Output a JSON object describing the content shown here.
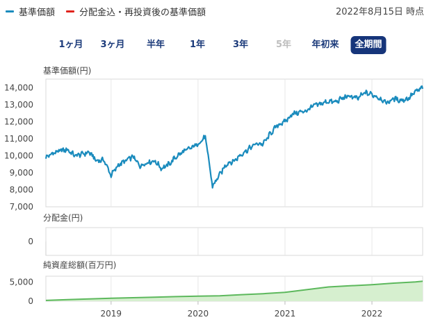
{
  "legend": {
    "items": [
      {
        "label": "基準価額",
        "color": "#1a8bbd"
      },
      {
        "label": "分配金込・再投資後の基準価額",
        "color": "#e0231c"
      }
    ]
  },
  "as_of": "2022年8月15日 時点",
  "periods": [
    {
      "label": "1ヶ月",
      "state": "normal"
    },
    {
      "label": "3ヶ月",
      "state": "normal"
    },
    {
      "label": "半年",
      "state": "normal"
    },
    {
      "label": "1年",
      "state": "normal"
    },
    {
      "label": "3年",
      "state": "normal"
    },
    {
      "label": "5年",
      "state": "disabled"
    },
    {
      "label": "年初来",
      "state": "normal"
    },
    {
      "label": "全期間",
      "state": "active"
    }
  ],
  "chart_data": [
    {
      "type": "line",
      "panel": "nav",
      "title": "基準価額(円)",
      "yticks": [
        "14,000",
        "13,000",
        "12,000",
        "11,000",
        "10,000",
        "9,000",
        "8,000",
        "7,000"
      ],
      "ylim": [
        7000,
        14500
      ],
      "x_range": [
        "2018-04",
        "2022-08"
      ],
      "color": "#1a8bbd",
      "x": [
        "2018-04",
        "2018-05",
        "2018-06",
        "2018-07",
        "2018-08",
        "2018-09",
        "2018-10",
        "2018-11",
        "2018-12",
        "2019-01",
        "2019-02",
        "2019-03",
        "2019-04",
        "2019-05",
        "2019-06",
        "2019-07",
        "2019-08",
        "2019-09",
        "2019-10",
        "2019-11",
        "2019-12",
        "2020-01",
        "2020-02",
        "2020-03",
        "2020-04",
        "2020-05",
        "2020-06",
        "2020-07",
        "2020-08",
        "2020-09",
        "2020-10",
        "2020-11",
        "2020-12",
        "2021-01",
        "2021-02",
        "2021-03",
        "2021-04",
        "2021-05",
        "2021-06",
        "2021-07",
        "2021-08",
        "2021-09",
        "2021-10",
        "2021-11",
        "2021-12",
        "2022-01",
        "2022-02",
        "2022-03",
        "2022-04",
        "2022-05",
        "2022-06",
        "2022-07",
        "2022-08"
      ],
      "y": [
        9900,
        10150,
        10300,
        10350,
        10000,
        10100,
        10200,
        9700,
        9750,
        8850,
        9450,
        9700,
        9950,
        9400,
        9600,
        9700,
        9250,
        9500,
        9950,
        10250,
        10450,
        10700,
        11100,
        8200,
        8900,
        9550,
        9700,
        10100,
        10400,
        10700,
        10700,
        11300,
        11800,
        12000,
        12450,
        12550,
        12650,
        12950,
        13050,
        13200,
        13150,
        13400,
        13500,
        13350,
        13700,
        13600,
        13400,
        13100,
        13350,
        13250,
        13350,
        13750,
        14000
      ]
    },
    {
      "type": "line",
      "panel": "distribution",
      "title": "分配金(円)",
      "yticks": [
        "0"
      ],
      "ylim": [
        0,
        1
      ],
      "series": []
    },
    {
      "type": "area",
      "panel": "net_assets",
      "title": "純資産総額(百万円)",
      "yticks": [
        "5,000",
        "0"
      ],
      "ylim": [
        0,
        6500
      ],
      "x_range": [
        "2018-04",
        "2022-08"
      ],
      "color": "#5cb85c",
      "fill": "#d6efcf",
      "x": [
        "2018-04",
        "2018-07",
        "2018-10",
        "2019-01",
        "2019-04",
        "2019-07",
        "2019-10",
        "2020-01",
        "2020-04",
        "2020-07",
        "2020-10",
        "2021-01",
        "2021-04",
        "2021-07",
        "2021-10",
        "2022-01",
        "2022-04",
        "2022-07",
        "2022-08"
      ],
      "y": [
        200,
        400,
        600,
        750,
        900,
        1050,
        1200,
        1300,
        1400,
        1700,
        1950,
        2300,
        3000,
        3700,
        4000,
        4300,
        4700,
        5000,
        5200
      ]
    }
  ],
  "xticks": [
    "2019",
    "2020",
    "2021",
    "2022"
  ]
}
